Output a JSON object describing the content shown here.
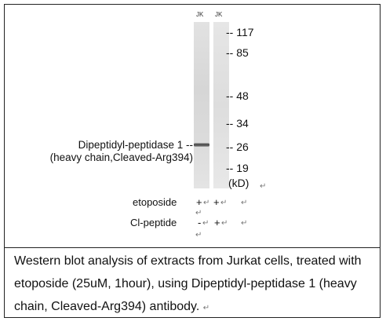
{
  "lanes": [
    "JK",
    "JK"
  ],
  "markers": [
    "-- 117",
    "-- 85",
    "-- 48",
    "-- 34",
    "-- 26",
    "-- 19"
  ],
  "unit": "(kD)",
  "protein_label": {
    "line1": "Dipeptidyl-peptidase 1 --",
    "line2": "(heavy chain,Cleaved-Arg394)"
  },
  "treatments": {
    "etoposide": {
      "label": "etoposide",
      "lane1": "+",
      "lane2": "+"
    },
    "peptide": {
      "label": "Cl-peptide",
      "lane1": "-",
      "lane2": "+"
    }
  },
  "paragraph_mark": "↵",
  "caption": "Western blot analysis of extracts from Jurkat cells, treated with etoposide (25uM, 1hour), using Dipeptidyl-peptidase 1 (heavy chain, Cleaved-Arg394) antibody."
}
